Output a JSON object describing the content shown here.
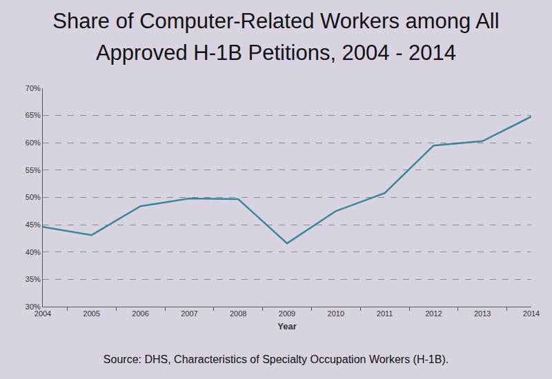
{
  "chart_data": {
    "type": "line",
    "title": "Share of Computer-Related Workers among All Approved H-1B Petitions, 2004 - 2014",
    "x_label": "Year",
    "source": "Source: DHS, Characteristics of Specialty Occupation Workers (H-1B).",
    "categories": [
      "2004",
      "2005",
      "2006",
      "2007",
      "2008",
      "2009",
      "2010",
      "2011",
      "2012",
      "2013",
      "2014"
    ],
    "values": [
      44.6,
      43.1,
      48.4,
      49.8,
      49.7,
      41.6,
      47.5,
      50.8,
      59.5,
      60.3,
      64.8
    ],
    "color": "#3a8597",
    "ylim": [
      30,
      70
    ],
    "yticks": [
      {
        "value": 30,
        "label": "30%"
      },
      {
        "value": 35,
        "label": "35%"
      },
      {
        "value": 40,
        "label": "40%"
      },
      {
        "value": 45,
        "label": "45%"
      },
      {
        "value": 50,
        "label": "50%"
      },
      {
        "value": 55,
        "label": "55%"
      },
      {
        "value": 60,
        "label": "60%"
      },
      {
        "value": 65,
        "label": "65%"
      },
      {
        "value": 70,
        "label": "70%"
      }
    ],
    "grid": true
  }
}
